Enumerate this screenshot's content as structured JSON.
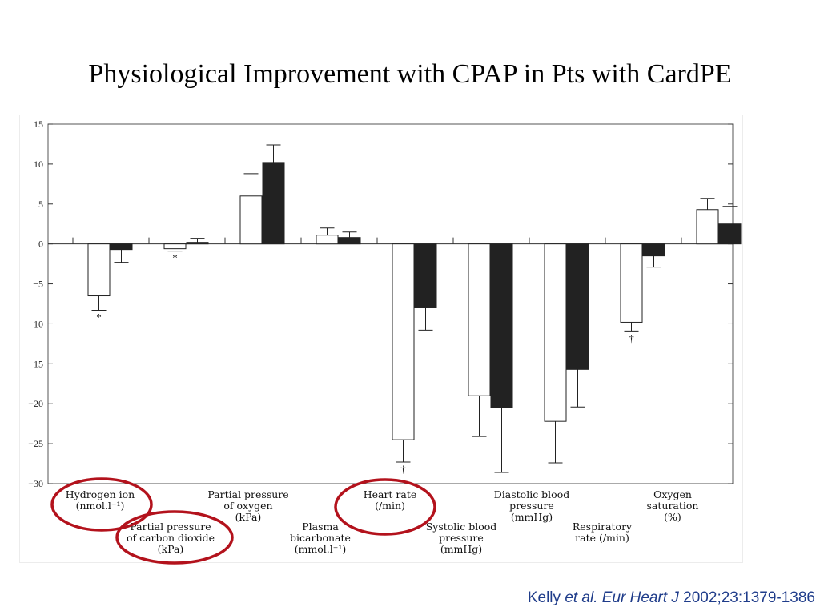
{
  "slide": {
    "title": "Physiological Improvement with CPAP in Pts with CardPE",
    "citation": {
      "author": "Kelly",
      "etal": "et al.",
      "journal": "Eur Heart J",
      "ref": "2002;23:1379-1386"
    }
  },
  "colors": {
    "bar_a": "#ffffff",
    "bar_b": "#222222",
    "highlight_circle": "#b3121c",
    "citation": "#1f3c8a"
  },
  "chart_data": {
    "type": "bar",
    "title": "",
    "xlabel": "",
    "ylabel": "",
    "ylim": [
      -30,
      15
    ],
    "yticks": [
      15,
      10,
      5,
      0,
      -5,
      -10,
      -15,
      -20,
      -25,
      -30
    ],
    "ytick_labels": [
      "15",
      "10",
      "5",
      "0",
      "−5",
      "−10",
      "−15",
      "−20",
      "−25",
      "−30"
    ],
    "grid": false,
    "legend": "none",
    "categories": [
      {
        "id": "hydrogen",
        "lines": [
          "Hydrogen ion",
          "(nmol.l⁻¹)"
        ]
      },
      {
        "id": "pco2",
        "lines": [
          "Partial pressure",
          "of carbon dioxide",
          "(kPa)"
        ]
      },
      {
        "id": "po2",
        "lines": [
          "Partial pressure",
          "of oxygen",
          "(kPa)"
        ]
      },
      {
        "id": "bicarb",
        "lines": [
          "Plasma",
          "bicarbonate",
          "(mmol.l⁻¹)"
        ]
      },
      {
        "id": "hr",
        "lines": [
          "Heart rate",
          "(/min)"
        ]
      },
      {
        "id": "sbp",
        "lines": [
          "Systolic blood",
          "pressure",
          "(mmHg)"
        ]
      },
      {
        "id": "dbp",
        "lines": [
          "Diastolic blood",
          "pressure",
          "(mmHg)"
        ]
      },
      {
        "id": "rr",
        "lines": [
          "Respiratory",
          "rate (/min)"
        ]
      },
      {
        "id": "sat",
        "lines": [
          "Oxygen",
          "saturation",
          "(%)"
        ]
      }
    ],
    "series": [
      {
        "values": [
          -6.5,
          -0.6,
          6.0,
          1.1,
          -24.5,
          -19.0,
          -22.2,
          -9.8,
          4.3
        ],
        "errors": [
          1.8,
          0.3,
          2.8,
          0.9,
          2.8,
          5.1,
          5.2,
          1.1,
          1.4
        ]
      },
      {
        "values": [
          -0.7,
          0.2,
          10.2,
          0.8,
          -8.0,
          -20.5,
          -15.7,
          -1.5,
          2.5
        ],
        "errors": [
          1.6,
          0.5,
          2.2,
          0.7,
          2.8,
          8.1,
          4.7,
          1.4,
          2.2
        ]
      }
    ],
    "annotations": [
      {
        "category": "hydrogen",
        "series": 0,
        "text": "*"
      },
      {
        "category": "pco2",
        "series": 0,
        "text": "*"
      },
      {
        "category": "hr",
        "series": 0,
        "text": "†"
      },
      {
        "category": "rr",
        "series": 0,
        "text": "†"
      }
    ],
    "highlighted_categories": [
      "hydrogen",
      "pco2",
      "hr"
    ]
  }
}
